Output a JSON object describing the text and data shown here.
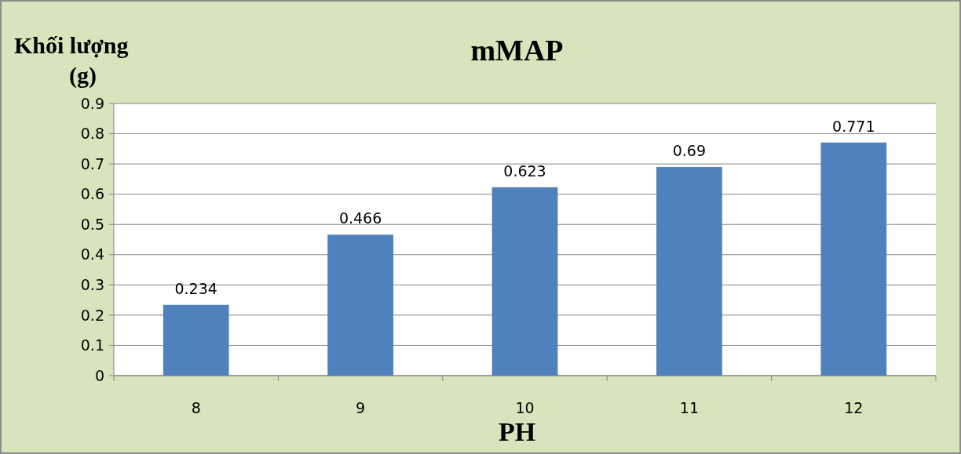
{
  "chart_data": {
    "type": "bar",
    "title": "mMAP",
    "xlabel": "PH",
    "ylabel": "Khối lượng (g)",
    "categories": [
      "8",
      "9",
      "10",
      "11",
      "12"
    ],
    "values": [
      0.234,
      0.466,
      0.623,
      0.69,
      0.771
    ],
    "color": "#4f81bd",
    "ylim": [
      0,
      0.9
    ],
    "yticks": [
      0,
      0.1,
      0.2,
      0.3,
      0.4,
      0.5,
      0.6,
      0.7,
      0.8,
      0.9
    ],
    "grid": "y",
    "data_labels": true
  }
}
